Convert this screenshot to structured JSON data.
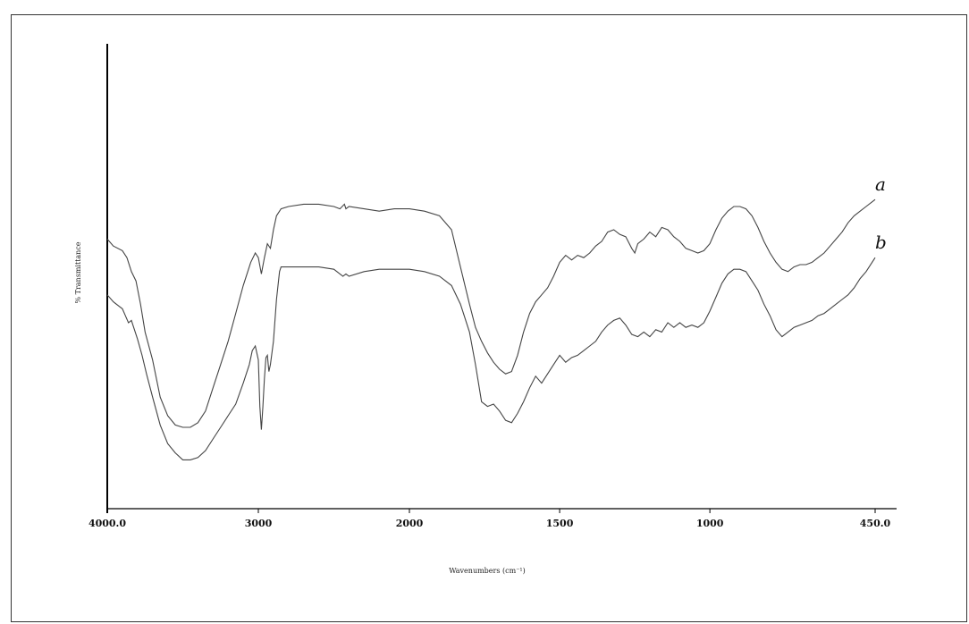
{
  "chart_data": {
    "type": "line",
    "title": "",
    "xlabel": "Wavenumbers (cm⁻¹)",
    "ylabel": "% Transmittance",
    "xlim": [
      4000,
      450
    ],
    "x_reversed": true,
    "y_ticks_shown": false,
    "grid": false,
    "x_ticks": [
      {
        "value": 4000,
        "label": "4000.0"
      },
      {
        "value": 3000,
        "label": "3000"
      },
      {
        "value": 2000,
        "label": "2000"
      },
      {
        "value": 1500,
        "label": "1500"
      },
      {
        "value": 1000,
        "label": "1000"
      },
      {
        "value": 450,
        "label": "450.0"
      }
    ],
    "series": [
      {
        "name": "a",
        "color": "#444444",
        "points": [
          [
            4000,
            58
          ],
          [
            3960,
            56.5
          ],
          [
            3900,
            55.5
          ],
          [
            3870,
            54
          ],
          [
            3840,
            51
          ],
          [
            3810,
            49
          ],
          [
            3780,
            44
          ],
          [
            3750,
            38
          ],
          [
            3700,
            32
          ],
          [
            3650,
            24
          ],
          [
            3600,
            20
          ],
          [
            3550,
            18
          ],
          [
            3500,
            17.5
          ],
          [
            3450,
            17.5
          ],
          [
            3400,
            18.5
          ],
          [
            3350,
            21
          ],
          [
            3300,
            26
          ],
          [
            3250,
            31
          ],
          [
            3200,
            36
          ],
          [
            3150,
            42
          ],
          [
            3100,
            48
          ],
          [
            3050,
            53
          ],
          [
            3020,
            55
          ],
          [
            3000,
            54
          ],
          [
            2980,
            50.5
          ],
          [
            2960,
            54
          ],
          [
            2940,
            57
          ],
          [
            2920,
            56
          ],
          [
            2900,
            60
          ],
          [
            2880,
            63
          ],
          [
            2850,
            64.5
          ],
          [
            2800,
            65
          ],
          [
            2700,
            65.5
          ],
          [
            2600,
            65.5
          ],
          [
            2500,
            65
          ],
          [
            2460,
            64.5
          ],
          [
            2430,
            65.5
          ],
          [
            2420,
            64.5
          ],
          [
            2400,
            65
          ],
          [
            2300,
            64.5
          ],
          [
            2200,
            64
          ],
          [
            2100,
            64.5
          ],
          [
            2000,
            64.5
          ],
          [
            1950,
            64
          ],
          [
            1900,
            63
          ],
          [
            1860,
            60
          ],
          [
            1830,
            52
          ],
          [
            1800,
            44
          ],
          [
            1780,
            39
          ],
          [
            1760,
            36
          ],
          [
            1740,
            33.5
          ],
          [
            1720,
            31.5
          ],
          [
            1700,
            30
          ],
          [
            1680,
            29
          ],
          [
            1660,
            29.5
          ],
          [
            1640,
            33
          ],
          [
            1620,
            38
          ],
          [
            1600,
            42
          ],
          [
            1580,
            44.5
          ],
          [
            1560,
            46
          ],
          [
            1540,
            47.5
          ],
          [
            1520,
            50
          ],
          [
            1500,
            53
          ],
          [
            1480,
            54.5
          ],
          [
            1460,
            53.5
          ],
          [
            1440,
            54.5
          ],
          [
            1420,
            54
          ],
          [
            1400,
            55
          ],
          [
            1380,
            56.5
          ],
          [
            1360,
            57.5
          ],
          [
            1340,
            59.5
          ],
          [
            1320,
            60
          ],
          [
            1300,
            59
          ],
          [
            1280,
            58.5
          ],
          [
            1260,
            56
          ],
          [
            1250,
            55
          ],
          [
            1240,
            57
          ],
          [
            1220,
            58
          ],
          [
            1200,
            59.5
          ],
          [
            1180,
            58.5
          ],
          [
            1160,
            60.5
          ],
          [
            1140,
            60
          ],
          [
            1120,
            58.5
          ],
          [
            1100,
            57.5
          ],
          [
            1080,
            56
          ],
          [
            1060,
            55.5
          ],
          [
            1040,
            55
          ],
          [
            1020,
            55.5
          ],
          [
            1000,
            57
          ],
          [
            980,
            60
          ],
          [
            960,
            62.5
          ],
          [
            940,
            64
          ],
          [
            920,
            65
          ],
          [
            900,
            65
          ],
          [
            880,
            64.5
          ],
          [
            860,
            63
          ],
          [
            840,
            60.5
          ],
          [
            820,
            57.5
          ],
          [
            800,
            55
          ],
          [
            780,
            53
          ],
          [
            760,
            51.5
          ],
          [
            740,
            51
          ],
          [
            720,
            52
          ],
          [
            700,
            52.5
          ],
          [
            680,
            52.5
          ],
          [
            660,
            53
          ],
          [
            640,
            54
          ],
          [
            620,
            55
          ],
          [
            600,
            56.5
          ],
          [
            580,
            58
          ],
          [
            560,
            59.5
          ],
          [
            540,
            61.5
          ],
          [
            520,
            63
          ],
          [
            500,
            64
          ],
          [
            480,
            65
          ],
          [
            460,
            66
          ],
          [
            450,
            66.5
          ]
        ]
      },
      {
        "name": "b",
        "color": "#444444",
        "points": [
          [
            4000,
            46
          ],
          [
            3960,
            44.5
          ],
          [
            3920,
            43.5
          ],
          [
            3900,
            43
          ],
          [
            3880,
            41.5
          ],
          [
            3860,
            40
          ],
          [
            3840,
            40.5
          ],
          [
            3820,
            38.5
          ],
          [
            3800,
            36.5
          ],
          [
            3770,
            33
          ],
          [
            3740,
            29
          ],
          [
            3700,
            24
          ],
          [
            3650,
            18
          ],
          [
            3600,
            14
          ],
          [
            3550,
            12
          ],
          [
            3500,
            10.5
          ],
          [
            3450,
            10.5
          ],
          [
            3400,
            11
          ],
          [
            3350,
            12.5
          ],
          [
            3300,
            15
          ],
          [
            3250,
            17.5
          ],
          [
            3200,
            20
          ],
          [
            3150,
            22.5
          ],
          [
            3100,
            27
          ],
          [
            3060,
            31
          ],
          [
            3040,
            34
          ],
          [
            3020,
            35
          ],
          [
            3000,
            32
          ],
          [
            2990,
            22
          ],
          [
            2980,
            17
          ],
          [
            2970,
            22
          ],
          [
            2960,
            28
          ],
          [
            2950,
            32.5
          ],
          [
            2940,
            33
          ],
          [
            2930,
            29.5
          ],
          [
            2920,
            31
          ],
          [
            2900,
            36
          ],
          [
            2880,
            45
          ],
          [
            2860,
            51
          ],
          [
            2850,
            52
          ],
          [
            2800,
            52
          ],
          [
            2700,
            52
          ],
          [
            2600,
            52
          ],
          [
            2500,
            51.5
          ],
          [
            2440,
            50
          ],
          [
            2420,
            50.5
          ],
          [
            2400,
            50
          ],
          [
            2300,
            51
          ],
          [
            2200,
            51.5
          ],
          [
            2100,
            51.5
          ],
          [
            2000,
            51.5
          ],
          [
            1950,
            51
          ],
          [
            1900,
            50
          ],
          [
            1860,
            48
          ],
          [
            1830,
            44
          ],
          [
            1800,
            38
          ],
          [
            1780,
            31
          ],
          [
            1760,
            23
          ],
          [
            1740,
            22
          ],
          [
            1720,
            22.5
          ],
          [
            1700,
            21
          ],
          [
            1680,
            19
          ],
          [
            1660,
            18.5
          ],
          [
            1640,
            20.5
          ],
          [
            1620,
            23
          ],
          [
            1600,
            26
          ],
          [
            1580,
            28.5
          ],
          [
            1560,
            27
          ],
          [
            1540,
            29
          ],
          [
            1520,
            31
          ],
          [
            1500,
            33
          ],
          [
            1480,
            31.5
          ],
          [
            1460,
            32.5
          ],
          [
            1440,
            33
          ],
          [
            1420,
            34
          ],
          [
            1400,
            35
          ],
          [
            1380,
            36
          ],
          [
            1360,
            38
          ],
          [
            1340,
            39.5
          ],
          [
            1320,
            40.5
          ],
          [
            1300,
            41
          ],
          [
            1280,
            39.5
          ],
          [
            1260,
            37.5
          ],
          [
            1240,
            37
          ],
          [
            1220,
            38
          ],
          [
            1200,
            37
          ],
          [
            1180,
            38.5
          ],
          [
            1160,
            38
          ],
          [
            1140,
            40
          ],
          [
            1120,
            39
          ],
          [
            1100,
            40
          ],
          [
            1080,
            39
          ],
          [
            1060,
            39.5
          ],
          [
            1040,
            39
          ],
          [
            1020,
            40
          ],
          [
            1000,
            42.5
          ],
          [
            980,
            45.5
          ],
          [
            960,
            48.5
          ],
          [
            940,
            50.5
          ],
          [
            920,
            51.5
          ],
          [
            900,
            51.5
          ],
          [
            880,
            51
          ],
          [
            860,
            49
          ],
          [
            840,
            47
          ],
          [
            820,
            44
          ],
          [
            800,
            41.5
          ],
          [
            780,
            38.5
          ],
          [
            760,
            37
          ],
          [
            740,
            38
          ],
          [
            720,
            39
          ],
          [
            700,
            39.5
          ],
          [
            680,
            40
          ],
          [
            660,
            40.5
          ],
          [
            640,
            41.5
          ],
          [
            620,
            42
          ],
          [
            600,
            43
          ],
          [
            580,
            44
          ],
          [
            560,
            45
          ],
          [
            540,
            46
          ],
          [
            520,
            47.5
          ],
          [
            500,
            49.5
          ],
          [
            480,
            51
          ],
          [
            460,
            53
          ],
          [
            450,
            54
          ]
        ]
      }
    ],
    "ylim": [
      0,
      100
    ]
  }
}
